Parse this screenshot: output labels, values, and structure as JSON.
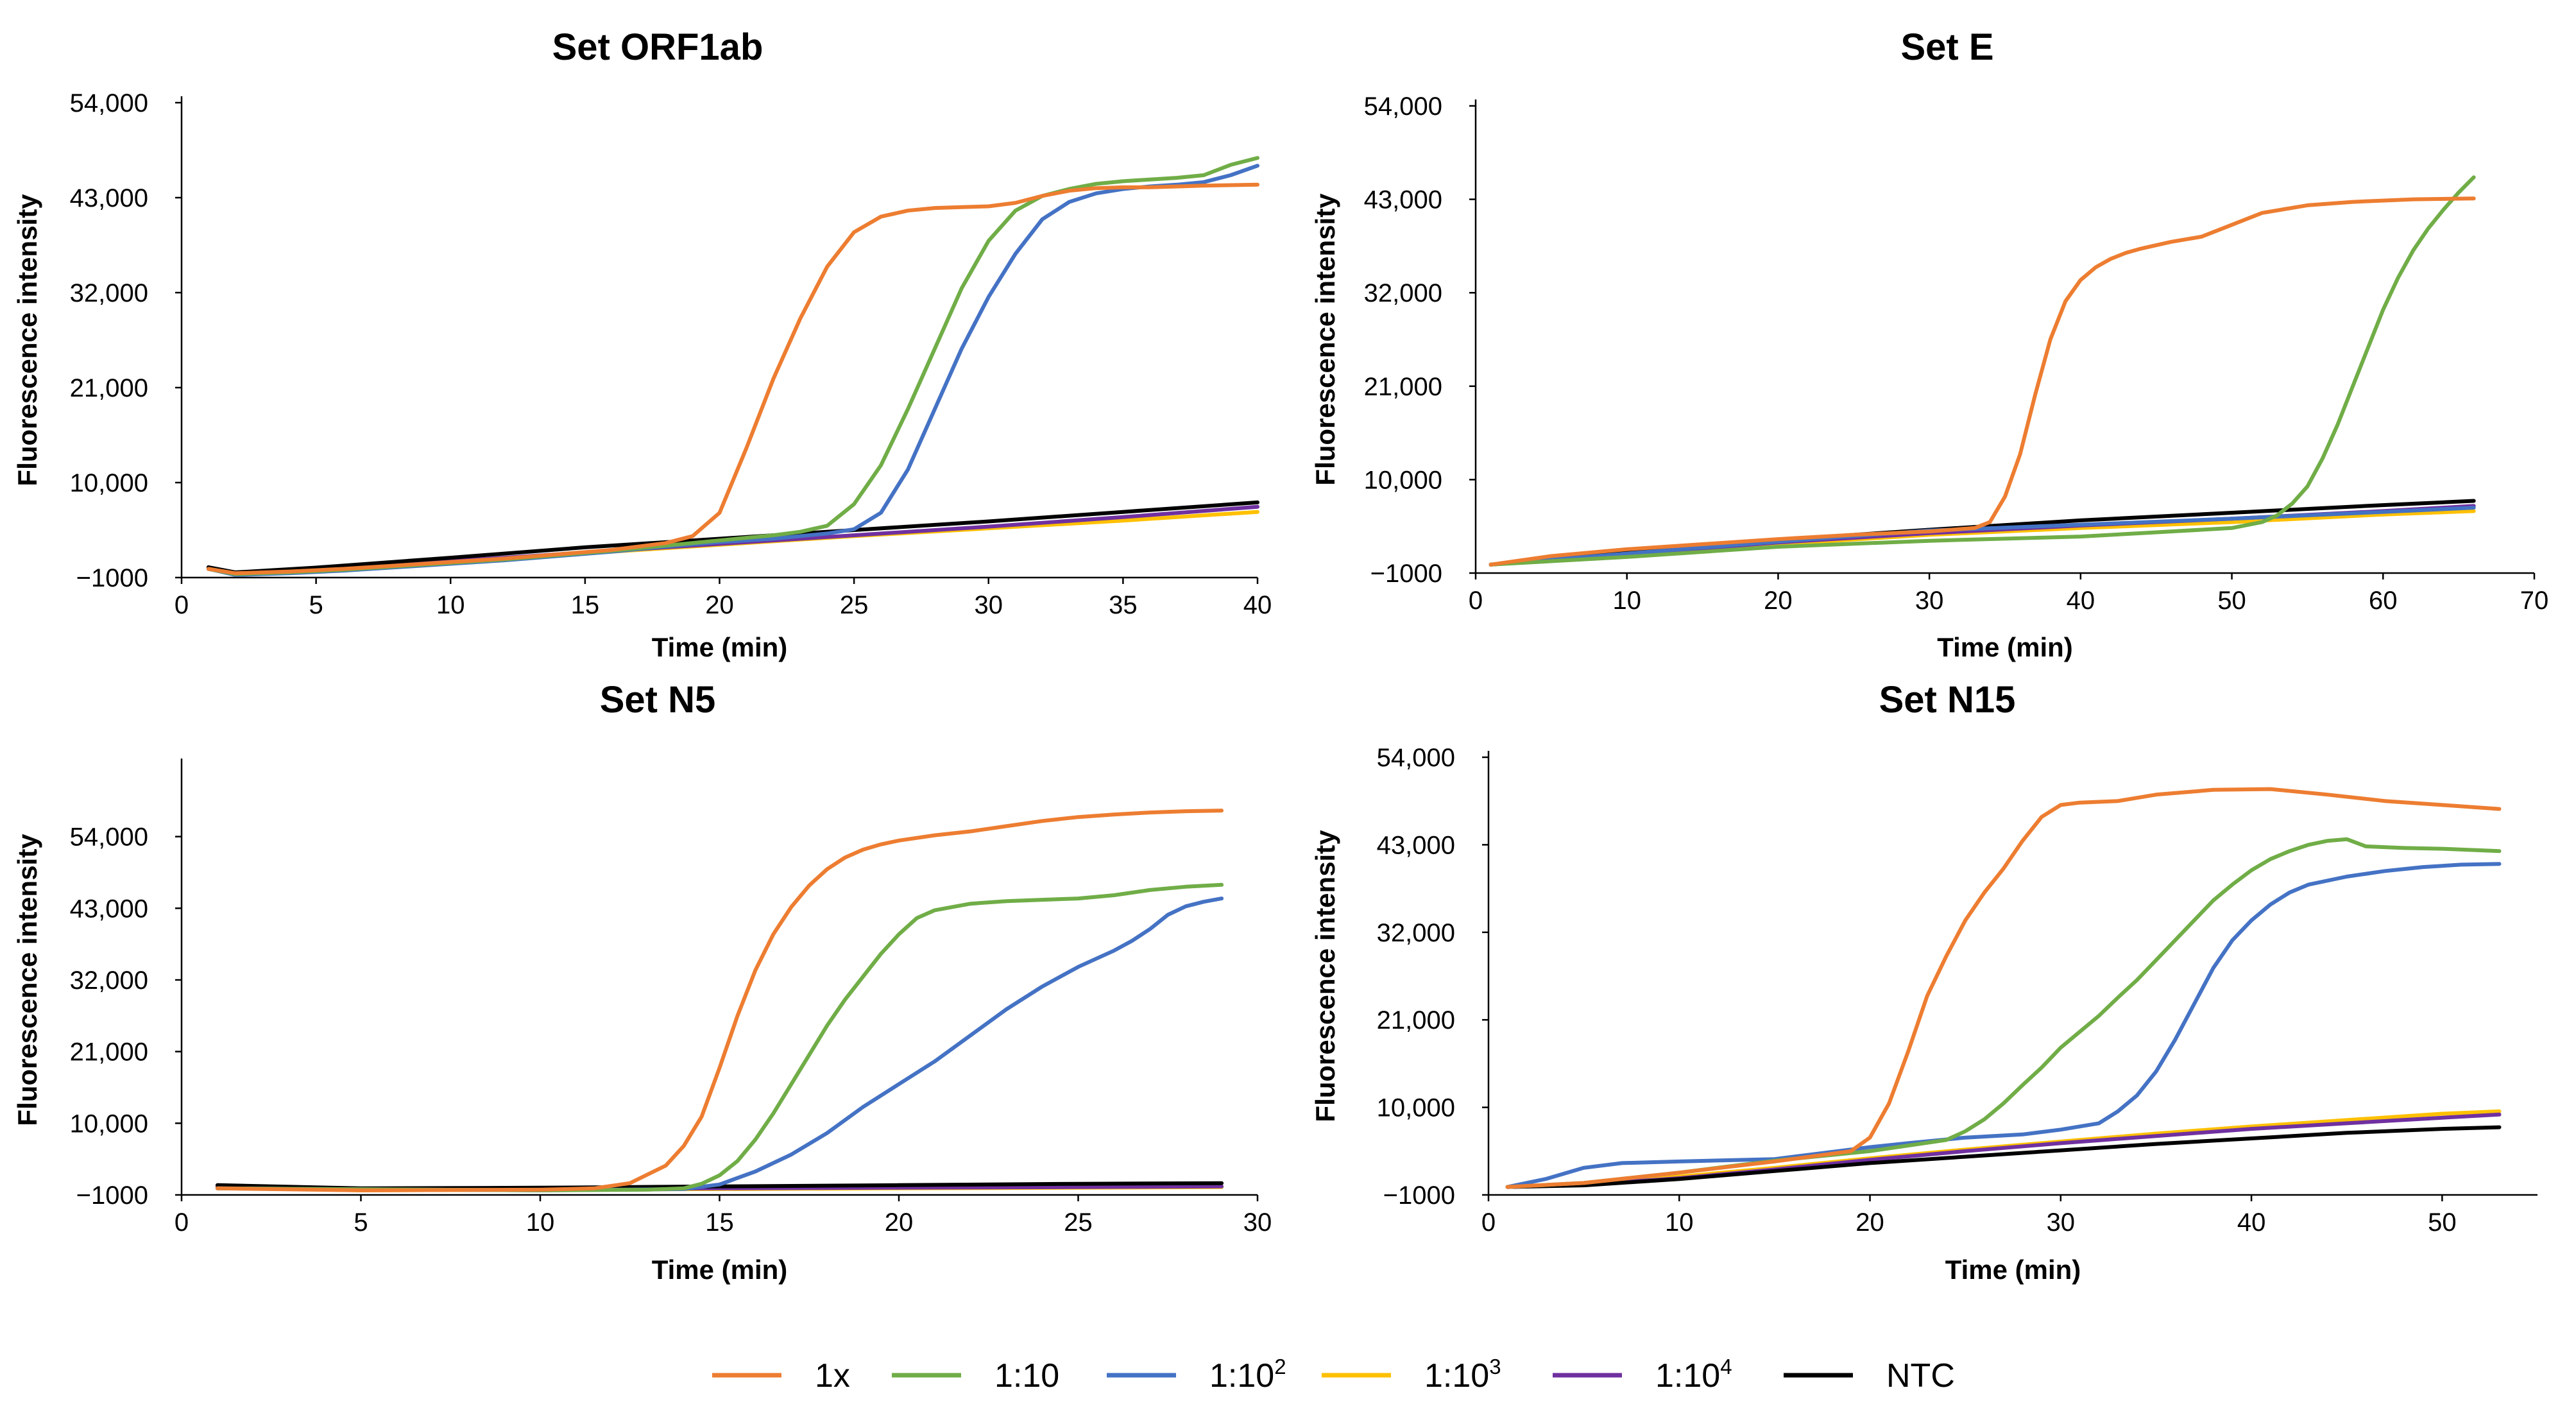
{
  "legend": [
    {
      "name": "1x",
      "color": "#ED7D31"
    },
    {
      "name": "1:10",
      "color": "#70AD47"
    },
    {
      "name": "1:10",
      "sup": "2",
      "color": "#4472C4"
    },
    {
      "name": "1:10",
      "sup": "3",
      "color": "#FFC000"
    },
    {
      "name": "1:10",
      "sup": "4",
      "color": "#7030A0"
    },
    {
      "name": "NTC",
      "color": "#000000"
    }
  ],
  "chart_data": [
    {
      "type": "line",
      "title": "Set ORF1ab",
      "xlabel": "Time (min)",
      "ylabel": "Fluorescence intensity",
      "xlim": [
        0,
        40
      ],
      "ylim": [
        -1000,
        54000
      ],
      "xticks": [
        0,
        5,
        10,
        15,
        20,
        25,
        30,
        35,
        40
      ],
      "yticks": [
        -1000,
        10000,
        21000,
        32000,
        43000,
        54000
      ],
      "ytick_labels": [
        "−1000",
        "10,000",
        "21,000",
        "32,000",
        "43,000",
        "54,000"
      ],
      "series": [
        {
          "name": "1x",
          "x": [
            1,
            2,
            4,
            6,
            8,
            10,
            12,
            14,
            16,
            18,
            19,
            20,
            21,
            22,
            23,
            24,
            25,
            26,
            27,
            28,
            29,
            30,
            31,
            32,
            33,
            34,
            35,
            36,
            38,
            40
          ],
          "y": [
            0,
            -500,
            -300,
            0,
            400,
            800,
            1200,
            1700,
            2200,
            3000,
            3800,
            6500,
            14000,
            22000,
            29000,
            35000,
            39000,
            40800,
            41500,
            41800,
            41900,
            42000,
            42400,
            43200,
            43800,
            44100,
            44200,
            44200,
            44400,
            44500
          ]
        },
        {
          "name": "1:10",
          "x": [
            1,
            2,
            4,
            6,
            8,
            10,
            12,
            14,
            16,
            18,
            20,
            22,
            23,
            24,
            25,
            26,
            27,
            28,
            29,
            30,
            31,
            32,
            33,
            34,
            35,
            36,
            37,
            38,
            39,
            40
          ],
          "y": [
            0,
            -600,
            -400,
            -100,
            300,
            700,
            1100,
            1600,
            2100,
            2700,
            3300,
            3900,
            4300,
            5000,
            7500,
            12000,
            18500,
            25500,
            32500,
            38000,
            41500,
            43200,
            44000,
            44600,
            44900,
            45100,
            45300,
            45600,
            46800,
            47600
          ]
        },
        {
          "name": "1:10²",
          "x": [
            1,
            2,
            4,
            6,
            8,
            10,
            12,
            14,
            16,
            18,
            20,
            22,
            24,
            25,
            26,
            27,
            28,
            29,
            30,
            31,
            32,
            33,
            34,
            35,
            36,
            37,
            38,
            39,
            40
          ],
          "y": [
            0,
            -700,
            -500,
            -200,
            200,
            600,
            1000,
            1500,
            2000,
            2600,
            3100,
            3500,
            4100,
            4600,
            6500,
            11500,
            18500,
            25500,
            31500,
            36500,
            40500,
            42500,
            43500,
            44000,
            44300,
            44500,
            44800,
            45600,
            46700
          ]
        },
        {
          "name": "1:10³",
          "x": [
            1,
            2,
            5,
            10,
            15,
            20,
            25,
            30,
            35,
            40
          ],
          "y": [
            0,
            -600,
            -100,
            800,
            1800,
            2800,
            3800,
            4700,
            5600,
            6600
          ]
        },
        {
          "name": "1:10⁴",
          "x": [
            1,
            2,
            5,
            10,
            15,
            20,
            25,
            30,
            35,
            40
          ],
          "y": [
            0,
            -550,
            -50,
            900,
            1900,
            2900,
            3900,
            4900,
            6000,
            7200
          ]
        },
        {
          "name": "NTC",
          "x": [
            1,
            2,
            5,
            10,
            15,
            20,
            25,
            30,
            35,
            40
          ],
          "y": [
            200,
            -400,
            150,
            1300,
            2500,
            3500,
            4500,
            5500,
            6600,
            7700
          ]
        }
      ]
    },
    {
      "type": "line",
      "title": "Set E",
      "xlabel": "Time (min)",
      "ylabel": "Fluorescence intensity",
      "xlim": [
        0,
        70
      ],
      "ylim": [
        -1000,
        54000
      ],
      "xticks": [
        0,
        10,
        20,
        30,
        40,
        50,
        60,
        70
      ],
      "yticks": [
        -1000,
        10000,
        21000,
        32000,
        43000,
        54000
      ],
      "ytick_labels": [
        "−1000",
        "10,000",
        "21,000",
        "32,000",
        "43,000",
        "54,000"
      ],
      "series": [
        {
          "name": "1x",
          "x": [
            1,
            5,
            10,
            15,
            20,
            25,
            30,
            33,
            34,
            35,
            36,
            37,
            38,
            39,
            40,
            41,
            42,
            43,
            44,
            46,
            48,
            50,
            52,
            55,
            58,
            62,
            66
          ],
          "y": [
            0,
            1000,
            1800,
            2400,
            3000,
            3500,
            3900,
            4300,
            5000,
            8000,
            13000,
            20000,
            26500,
            31000,
            33500,
            35000,
            36000,
            36700,
            37200,
            38000,
            38600,
            40000,
            41400,
            42300,
            42700,
            43000,
            43100
          ]
        },
        {
          "name": "1:10",
          "x": [
            1,
            10,
            20,
            30,
            40,
            45,
            50,
            52,
            53,
            54,
            55,
            56,
            57,
            58,
            59,
            60,
            61,
            62,
            63,
            64,
            65,
            66
          ],
          "y": [
            0,
            900,
            2100,
            2800,
            3300,
            3800,
            4300,
            5000,
            5800,
            7200,
            9200,
            12500,
            16500,
            21000,
            25500,
            30000,
            33800,
            37000,
            39600,
            41800,
            43800,
            45600
          ]
        },
        {
          "name": "1:10²",
          "x": [
            1,
            10,
            20,
            30,
            40,
            50,
            60,
            66
          ],
          "y": [
            0,
            1300,
            2700,
            4000,
            4700,
            5400,
            6200,
            6700
          ]
        },
        {
          "name": "1:10³",
          "x": [
            1,
            10,
            20,
            30,
            40,
            50,
            60,
            66
          ],
          "y": [
            0,
            1100,
            2400,
            3500,
            4300,
            5000,
            5900,
            6300
          ]
        },
        {
          "name": "1:10⁴",
          "x": [
            1,
            10,
            20,
            30,
            40,
            50,
            60,
            66
          ],
          "y": [
            0,
            1200,
            2600,
            3700,
            4600,
            5400,
            6300,
            6900
          ]
        },
        {
          "name": "NTC",
          "x": [
            1,
            10,
            20,
            30,
            40,
            50,
            60,
            66
          ],
          "y": [
            0,
            1500,
            2900,
            4100,
            5200,
            6100,
            7000,
            7500
          ]
        }
      ]
    },
    {
      "type": "line",
      "title": "Set N5",
      "xlabel": "Time (min)",
      "ylabel": "Fluorescence intensity",
      "xlim": [
        0,
        30
      ],
      "ylim": [
        -1000,
        65000
      ],
      "xticks": [
        0,
        5,
        10,
        15,
        20,
        25,
        30
      ],
      "yticks": [
        -1000,
        10000,
        21000,
        32000,
        43000,
        54000
      ],
      "ytick_labels": [
        "−1000",
        "10,000",
        "21,000",
        "32,000",
        "43,000",
        "54,000"
      ],
      "series": [
        {
          "name": "1x",
          "x": [
            1,
            5,
            10,
            11.5,
            12.5,
            13.5,
            14,
            14.5,
            15,
            15.5,
            16,
            16.5,
            17,
            17.5,
            18,
            18.5,
            19,
            19.5,
            20,
            21,
            22,
            23,
            24,
            25,
            26,
            27,
            28,
            29
          ],
          "y": [
            0,
            -300,
            -200,
            0,
            800,
            3500,
            6500,
            11000,
            18500,
            26500,
            33500,
            39000,
            43200,
            46500,
            49000,
            50800,
            52000,
            52800,
            53400,
            54200,
            54800,
            55600,
            56400,
            57000,
            57400,
            57700,
            57900,
            58000
          ]
        },
        {
          "name": "1:10",
          "x": [
            1,
            10,
            13,
            14,
            14.5,
            15,
            15.5,
            16,
            16.5,
            17,
            17.5,
            18,
            18.5,
            19,
            19.5,
            20,
            20.5,
            21,
            22,
            23,
            24,
            25,
            26,
            27,
            28,
            29
          ],
          "y": [
            0,
            -300,
            -200,
            0,
            700,
            2000,
            4200,
            7500,
            11500,
            16000,
            20500,
            25000,
            29000,
            32500,
            36000,
            39000,
            41500,
            42700,
            43700,
            44100,
            44300,
            44500,
            45000,
            45800,
            46300,
            46600
          ]
        },
        {
          "name": "1:10²",
          "x": [
            1,
            10,
            14,
            15,
            16,
            17,
            18,
            19,
            20,
            21,
            22,
            23,
            24,
            25,
            26,
            26.5,
            27,
            27.5,
            28,
            28.5,
            29
          ],
          "y": [
            0,
            -300,
            -100,
            600,
            2600,
            5200,
            8500,
            12500,
            16000,
            19500,
            23500,
            27500,
            31000,
            34000,
            36500,
            38000,
            39800,
            42000,
            43300,
            44000,
            44500
          ]
        },
        {
          "name": "1:10³",
          "x": [
            1,
            5,
            10,
            15,
            20,
            25,
            29
          ],
          "y": [
            100,
            -300,
            -200,
            -100,
            0,
            100,
            200
          ]
        },
        {
          "name": "1:10⁴",
          "x": [
            1,
            5,
            10,
            15,
            20,
            25,
            29
          ],
          "y": [
            300,
            -200,
            -100,
            0,
            100,
            200,
            300
          ]
        },
        {
          "name": "NTC",
          "x": [
            1,
            5,
            10,
            15,
            20,
            25,
            29
          ],
          "y": [
            500,
            0,
            100,
            300,
            500,
            700,
            800
          ]
        }
      ]
    },
    {
      "type": "line",
      "title": "Set N15",
      "xlabel": "Time (min)",
      "ylabel": "Fluorescence intensity",
      "xlim": [
        0,
        55
      ],
      "ylim": [
        -1000,
        54000
      ],
      "xticks": [
        0,
        10,
        20,
        30,
        40,
        50
      ],
      "yticks": [
        -1000,
        10000,
        21000,
        32000,
        43000,
        54000
      ],
      "ytick_labels": [
        "−1000",
        "10,000",
        "21,000",
        "32,000",
        "43,000",
        "54,000"
      ],
      "series": [
        {
          "name": "1x",
          "x": [
            1,
            5,
            10,
            15,
            19,
            20,
            21,
            22,
            23,
            24,
            25,
            26,
            27,
            28,
            29,
            30,
            31,
            33,
            35,
            38,
            41,
            44,
            47,
            50,
            53
          ],
          "y": [
            0,
            500,
            1800,
            3200,
            4500,
            6200,
            10500,
            17000,
            24000,
            29000,
            33500,
            37000,
            40000,
            43500,
            46500,
            48000,
            48300,
            48500,
            49300,
            49900,
            50000,
            49300,
            48500,
            48000,
            47500
          ]
        },
        {
          "name": "1:10",
          "x": [
            1,
            5,
            10,
            15,
            20,
            24,
            25,
            26,
            27,
            28,
            29,
            30,
            31,
            32,
            33,
            34,
            35,
            36,
            37,
            38,
            39,
            40,
            41,
            42,
            43,
            44,
            45,
            46,
            48,
            50,
            53
          ],
          "y": [
            0,
            500,
            1800,
            3300,
            4500,
            5900,
            7000,
            8500,
            10500,
            12800,
            15000,
            17500,
            19500,
            21500,
            23800,
            26000,
            28500,
            31000,
            33500,
            36000,
            38000,
            39800,
            41200,
            42200,
            43000,
            43500,
            43700,
            42800,
            42600,
            42500,
            42200
          ]
        },
        {
          "name": "1:10²",
          "x": [
            1,
            3,
            5,
            7,
            10,
            15,
            20,
            22,
            25,
            28,
            30,
            32,
            33,
            34,
            35,
            36,
            37,
            38,
            39,
            40,
            41,
            42,
            43,
            45,
            47,
            49,
            51,
            53
          ],
          "y": [
            0,
            1000,
            2400,
            3000,
            3200,
            3500,
            5000,
            5500,
            6200,
            6600,
            7200,
            8000,
            9500,
            11500,
            14500,
            18500,
            23000,
            27500,
            31000,
            33500,
            35500,
            37000,
            38000,
            39000,
            39700,
            40200,
            40500,
            40600
          ]
        },
        {
          "name": "1:10³",
          "x": [
            1,
            5,
            10,
            15,
            20,
            25,
            30,
            35,
            40,
            45,
            50,
            53
          ],
          "y": [
            0,
            400,
            1300,
            2400,
            3600,
            4700,
            5700,
            6700,
            7600,
            8400,
            9200,
            9500
          ]
        },
        {
          "name": "1:10⁴",
          "x": [
            1,
            5,
            10,
            15,
            20,
            25,
            30,
            35,
            40,
            45,
            50,
            53
          ],
          "y": [
            0,
            300,
            1100,
            2200,
            3400,
            4500,
            5500,
            6400,
            7300,
            8000,
            8700,
            9100
          ]
        },
        {
          "name": "NTC",
          "x": [
            1,
            5,
            10,
            15,
            20,
            25,
            30,
            35,
            40,
            45,
            50,
            53
          ],
          "y": [
            0,
            200,
            1000,
            2000,
            3000,
            3800,
            4600,
            5400,
            6100,
            6800,
            7300,
            7500
          ]
        }
      ]
    }
  ]
}
